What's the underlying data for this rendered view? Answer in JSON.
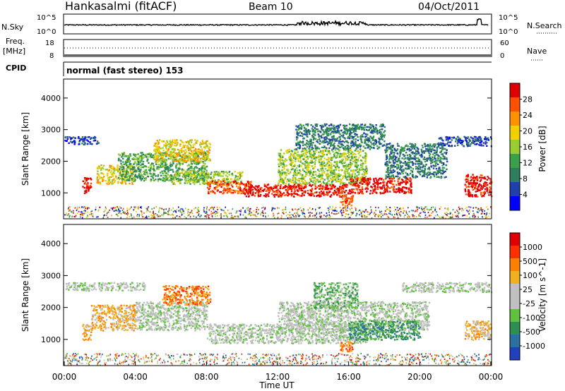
{
  "header": {
    "station": "Hankasalmi (fitACF)",
    "beam": "Beam 10",
    "date": "04/Oct/2011"
  },
  "noise_panel": {
    "left_label": "N.Sky",
    "right_label": "N.Search",
    "left_ticks": [
      "10^5",
      "10^0"
    ],
    "right_ticks": [
      "10^5",
      "10^0"
    ]
  },
  "freq_panel": {
    "left_label_1": "Freq.",
    "left_label_2": "[MHz]",
    "right_label": "Nave",
    "left_ticks": [
      "18",
      "8"
    ],
    "right_ticks": [
      "60",
      "0"
    ]
  },
  "cpid": {
    "label": "CPID",
    "value": "normal (fast stereo) 153"
  },
  "colors": {
    "power_scale": [
      "#0000ff",
      "#1f3faa",
      "#2e7d5e",
      "#3aa04a",
      "#9acd32",
      "#f0d000",
      "#ff9000",
      "#ff5000",
      "#e00000"
    ],
    "velocity_scale": [
      "#2040c0",
      "#2a70a0",
      "#2e9050",
      "#60c040",
      "#c0c0c0",
      "#c0c0c0",
      "#f0b020",
      "#ff8000",
      "#ff3000",
      "#e00000"
    ]
  },
  "chart_data": [
    {
      "type": "heatmap",
      "name": "power",
      "ylabel": "Slant Range [km]",
      "ylim": [
        180,
        4600
      ],
      "yticks": [
        "1000",
        "2000",
        "3000",
        "4000"
      ],
      "xlim": [
        0,
        24
      ],
      "colorbar": {
        "label": "Power [dB]",
        "ticks": [
          "28",
          "24",
          "20",
          "16",
          "12",
          "8",
          "4"
        ]
      },
      "echo_regions": [
        {
          "t0": 0.0,
          "t1": 1.9,
          "r0": 2550,
          "r1": 2800,
          "level": 1
        },
        {
          "t0": 1.0,
          "t1": 1.5,
          "r0": 1000,
          "r1": 1500,
          "level": 8
        },
        {
          "t0": 1.8,
          "t1": 4.0,
          "r0": 1300,
          "r1": 1900,
          "level": 5
        },
        {
          "t0": 3.0,
          "t1": 8.0,
          "r0": 1400,
          "r1": 2300,
          "level": 3
        },
        {
          "t0": 5.0,
          "t1": 8.2,
          "r0": 2000,
          "r1": 2700,
          "level": 5
        },
        {
          "t0": 6.0,
          "t1": 10.0,
          "r0": 1300,
          "r1": 1700,
          "level": 4
        },
        {
          "t0": 8.0,
          "t1": 10.5,
          "r0": 1000,
          "r1": 1400,
          "level": 7
        },
        {
          "t0": 10.0,
          "t1": 16.0,
          "r0": 900,
          "r1": 1300,
          "level": 8
        },
        {
          "t0": 12.0,
          "t1": 17.0,
          "r0": 1300,
          "r1": 2400,
          "level": 4
        },
        {
          "t0": 13.0,
          "t1": 18.0,
          "r0": 2400,
          "r1": 3200,
          "level": 2
        },
        {
          "t0": 15.5,
          "t1": 16.2,
          "r0": 600,
          "r1": 950,
          "level": 7
        },
        {
          "t0": 16.0,
          "t1": 19.5,
          "r0": 1000,
          "r1": 1500,
          "level": 8
        },
        {
          "t0": 18.0,
          "t1": 21.5,
          "r0": 1500,
          "r1": 2600,
          "level": 2
        },
        {
          "t0": 21.0,
          "t1": 24.0,
          "r0": 2500,
          "r1": 2800,
          "level": 1
        },
        {
          "t0": 22.5,
          "t1": 24.0,
          "r0": 900,
          "r1": 1600,
          "level": 8
        }
      ]
    },
    {
      "type": "heatmap",
      "name": "velocity",
      "ylabel": "Slant Range [km]",
      "ylim": [
        180,
        4600
      ],
      "yticks": [
        "1000",
        "2000",
        "3000",
        "4000"
      ],
      "xlim": [
        0,
        24
      ],
      "xlabel": "Time UT",
      "xticks": [
        "00:00",
        "04:00",
        "08:00",
        "12:00",
        "16:00",
        "20:00",
        "00:00"
      ],
      "colorbar": {
        "label": "Velocity [m s^-1]",
        "ticks": [
          "1000",
          "500",
          "100",
          "25",
          "-25",
          "-100",
          "-500",
          "-1000"
        ]
      },
      "echo_regions": [
        {
          "t0": 0.0,
          "t1": 4.5,
          "r0": 2550,
          "r1": 2800,
          "level": 4
        },
        {
          "t0": 1.0,
          "t1": 1.5,
          "r0": 1000,
          "r1": 1500,
          "level": 6
        },
        {
          "t0": 1.5,
          "t1": 4.0,
          "r0": 1300,
          "r1": 2100,
          "level": 6
        },
        {
          "t0": 4.0,
          "t1": 8.0,
          "r0": 1300,
          "r1": 2200,
          "level": 4
        },
        {
          "t0": 5.5,
          "t1": 8.2,
          "r0": 2100,
          "r1": 2700,
          "level": 7
        },
        {
          "t0": 8.0,
          "t1": 17.0,
          "r0": 900,
          "r1": 1500,
          "level": 4
        },
        {
          "t0": 12.0,
          "t1": 20.5,
          "r0": 1300,
          "r1": 2200,
          "level": 4
        },
        {
          "t0": 14.0,
          "t1": 16.5,
          "r0": 2000,
          "r1": 2800,
          "level": 3
        },
        {
          "t0": 15.5,
          "t1": 16.2,
          "r0": 600,
          "r1": 950,
          "level": 7
        },
        {
          "t0": 16.0,
          "t1": 20.0,
          "r0": 1000,
          "r1": 1600,
          "level": 2
        },
        {
          "t0": 19.0,
          "t1": 24.0,
          "r0": 2500,
          "r1": 2800,
          "level": 4
        },
        {
          "t0": 22.5,
          "t1": 24.0,
          "r0": 1000,
          "r1": 1600,
          "level": 6
        }
      ]
    }
  ]
}
